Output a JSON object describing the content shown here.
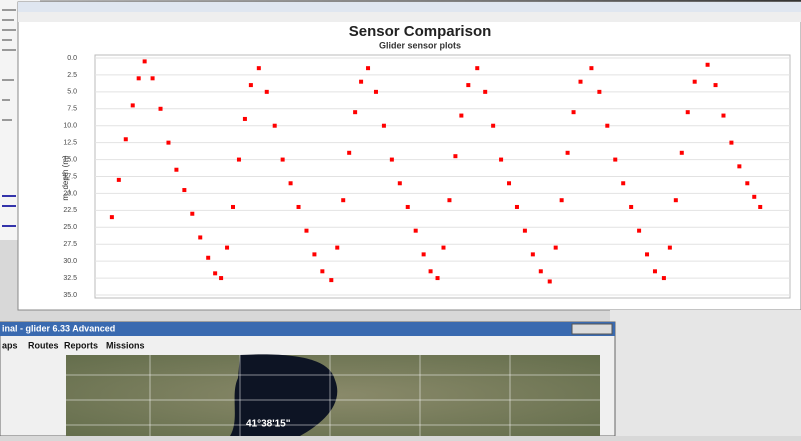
{
  "chart_data": {
    "type": "scatter",
    "title": "Sensor Comparison",
    "subtitle": "Glider sensor plots",
    "y_label": "m_depth (m)",
    "color": "#ff0000",
    "grid": true,
    "y_inverted": true,
    "xlim": [
      0,
      700
    ],
    "ylim": [
      0,
      35
    ],
    "yticks": [
      {
        "value": 0,
        "label": "0.0"
      },
      2.5,
      {
        "value": 5,
        "label": "5.0"
      },
      7.5,
      {
        "value": 10,
        "label": "10.0"
      },
      12.5,
      {
        "value": 15,
        "label": "15.0"
      },
      17.5,
      {
        "value": 20,
        "label": "20.0"
      },
      22.5,
      {
        "value": 25,
        "label": "25.0"
      },
      27.5,
      {
        "value": 30,
        "label": "30.0"
      },
      32.5,
      {
        "value": 35,
        "label": "35.0"
      }
    ],
    "x": [
      17,
      24,
      31,
      38,
      44,
      50,
      58,
      66,
      74,
      82,
      90,
      98,
      106,
      114,
      121,
      127,
      133,
      139,
      145,
      151,
      157,
      165,
      173,
      181,
      189,
      197,
      205,
      213,
      221,
      229,
      238,
      244,
      250,
      256,
      262,
      268,
      275,
      283,
      291,
      299,
      307,
      315,
      323,
      331,
      338,
      345,
      351,
      357,
      363,
      369,
      376,
      385,
      393,
      401,
      409,
      417,
      425,
      433,
      441,
      449,
      458,
      464,
      470,
      476,
      482,
      489,
      500,
      508,
      516,
      524,
      532,
      540,
      548,
      556,
      564,
      573,
      579,
      585,
      591,
      597,
      604,
      617,
      625,
      633,
      641,
      649,
      657,
      664,
      670
    ],
    "values": [
      23.5,
      18,
      12,
      7,
      3,
      0.5,
      3,
      7.5,
      12.5,
      16.5,
      19.5,
      23,
      26.5,
      29.5,
      31.8,
      32.5,
      28,
      22,
      15,
      9,
      4,
      1.5,
      5,
      10,
      15,
      18.5,
      22,
      25.5,
      29,
      31.5,
      32.8,
      28,
      21,
      14,
      8,
      3.5,
      1.5,
      5,
      10,
      15,
      18.5,
      22,
      25.5,
      29,
      31.5,
      32.5,
      28,
      21,
      14.5,
      8.5,
      4,
      1.5,
      5,
      10,
      15,
      18.5,
      22,
      25.5,
      29,
      31.5,
      33,
      28,
      21,
      14,
      8,
      3.5,
      1.5,
      5,
      10,
      15,
      18.5,
      22,
      25.5,
      29,
      31.5,
      32.5,
      28,
      21,
      14,
      8,
      3.5,
      1,
      4,
      8.5,
      12.5,
      16,
      18.5,
      20.5,
      22
    ]
  },
  "lower_window": {
    "title": "inal - glider 6.33 Advanced",
    "menus": [
      "aps",
      "Routes",
      "Reports",
      "Missions"
    ],
    "map_label": "41°38'15\""
  }
}
